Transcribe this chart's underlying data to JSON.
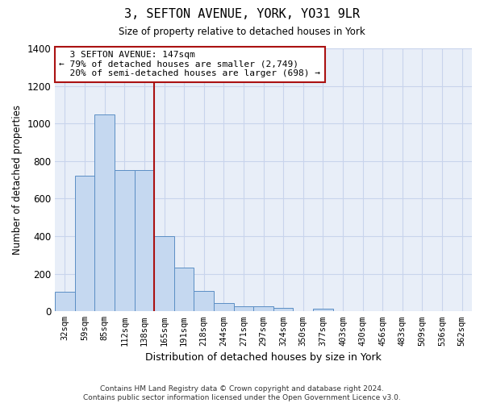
{
  "title": "3, SEFTON AVENUE, YORK, YO31 9LR",
  "subtitle": "Size of property relative to detached houses in York",
  "xlabel": "Distribution of detached houses by size in York",
  "ylabel": "Number of detached properties",
  "bar_color": "#c5d8f0",
  "bar_edge_color": "#5b8ec4",
  "background_color": "#e8eef8",
  "categories": [
    "32sqm",
    "59sqm",
    "85sqm",
    "112sqm",
    "138sqm",
    "165sqm",
    "191sqm",
    "218sqm",
    "244sqm",
    "271sqm",
    "297sqm",
    "324sqm",
    "350sqm",
    "377sqm",
    "403sqm",
    "430sqm",
    "456sqm",
    "483sqm",
    "509sqm",
    "536sqm",
    "562sqm"
  ],
  "values": [
    105,
    720,
    1050,
    750,
    750,
    400,
    235,
    110,
    45,
    27,
    27,
    20,
    0,
    15,
    0,
    0,
    0,
    0,
    0,
    0,
    0
  ],
  "ylim": [
    0,
    1400
  ],
  "yticks": [
    0,
    200,
    400,
    600,
    800,
    1000,
    1200,
    1400
  ],
  "property_line_x": 4.5,
  "annotation_text": "  3 SEFTON AVENUE: 147sqm\n← 79% of detached houses are smaller (2,749)\n  20% of semi-detached houses are larger (698) →",
  "footer_text": "Contains HM Land Registry data © Crown copyright and database right 2024.\nContains public sector information licensed under the Open Government Licence v3.0.",
  "grid_color": "#c8d4ec",
  "line_color": "#aa1111",
  "annotation_box_color": "#aa1111"
}
